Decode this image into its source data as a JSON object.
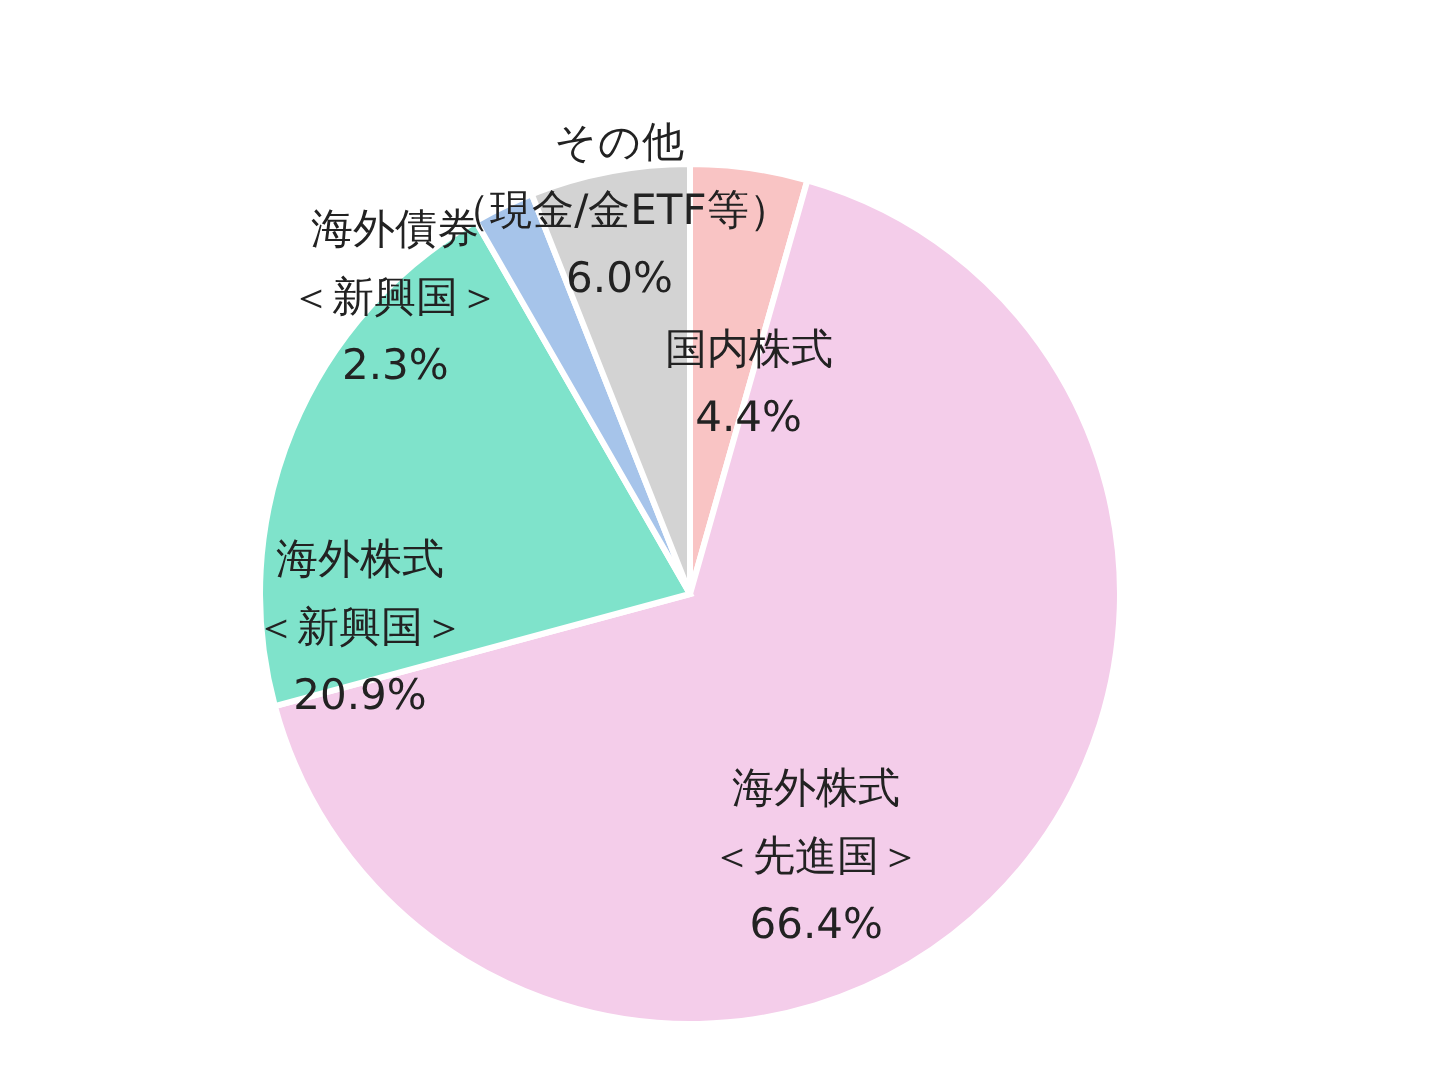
{
  "chart_data": {
    "type": "pie",
    "categories": [
      "国内株式",
      "海外株式＜先進国＞",
      "海外株式＜新興国＞",
      "海外債券＜新興国＞",
      "その他（現金/金ETF等）"
    ],
    "values": [
      4.4,
      66.4,
      20.9,
      2.3,
      6.0
    ],
    "colors": [
      "#f9c4c4",
      "#f4cdea",
      "#7fe3cb",
      "#a6c4ea",
      "#d3d3d3"
    ],
    "value_labels": [
      "4.4%",
      "66.4%",
      "20.9%",
      "2.3%",
      "6.0%"
    ]
  }
}
